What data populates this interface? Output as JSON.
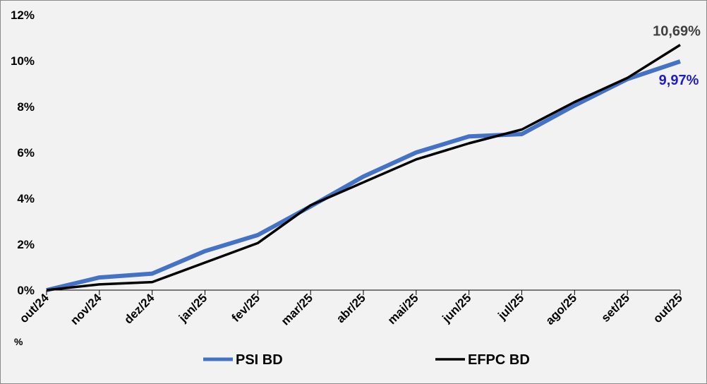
{
  "chart_data": {
    "type": "line",
    "title": "",
    "xlabel": "",
    "ylabel": "",
    "categories": [
      "out/24",
      "nov/24",
      "dez/24",
      "jan/25",
      "fev/25",
      "mar/25",
      "abr/25",
      "mai/25",
      "jun/25",
      "jul/25",
      "ago/25",
      "set/25",
      "out/25"
    ],
    "ylim": [
      0,
      12
    ],
    "yticks": [
      0,
      2,
      4,
      6,
      8,
      10,
      12
    ],
    "ytick_labels": [
      "0%",
      "2%",
      "4%",
      "6%",
      "8%",
      "10%",
      "12%"
    ],
    "stray_tick_text": "%",
    "grid": false,
    "legend_position": "bottom",
    "series": [
      {
        "name": "PSI BD",
        "color": "#4472c4",
        "values": [
          0.0,
          0.55,
          0.72,
          1.7,
          2.4,
          3.65,
          4.95,
          6.0,
          6.7,
          6.8,
          8.05,
          9.2,
          9.97
        ],
        "end_label": "9,97%",
        "end_label_color": "#1f1fbf"
      },
      {
        "name": "EFPC BD",
        "color": "#000000",
        "values": [
          0.0,
          0.25,
          0.35,
          1.2,
          2.05,
          3.7,
          4.7,
          5.7,
          6.4,
          7.0,
          8.2,
          9.25,
          10.69
        ],
        "end_label": "10,69%",
        "end_label_color": "#404040"
      }
    ]
  }
}
